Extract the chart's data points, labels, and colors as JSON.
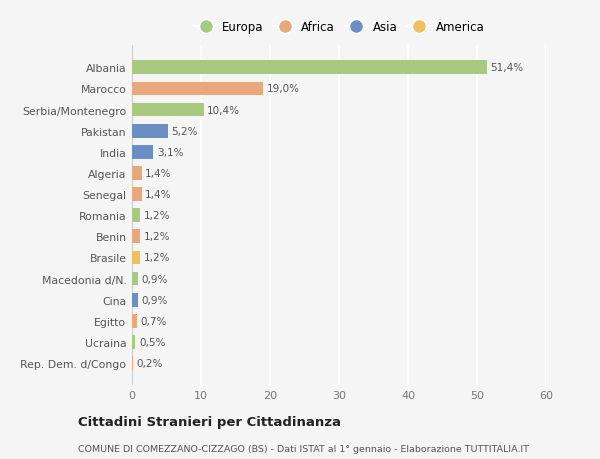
{
  "countries": [
    "Albania",
    "Marocco",
    "Serbia/Montenegro",
    "Pakistan",
    "India",
    "Algeria",
    "Senegal",
    "Romania",
    "Benin",
    "Brasile",
    "Macedonia d/N.",
    "Cina",
    "Egitto",
    "Ucraina",
    "Rep. Dem. d/Congo"
  ],
  "values": [
    51.4,
    19.0,
    10.4,
    5.2,
    3.1,
    1.4,
    1.4,
    1.2,
    1.2,
    1.2,
    0.9,
    0.9,
    0.7,
    0.5,
    0.2
  ],
  "labels": [
    "51,4%",
    "19,0%",
    "10,4%",
    "5,2%",
    "3,1%",
    "1,4%",
    "1,4%",
    "1,2%",
    "1,2%",
    "1,2%",
    "0,9%",
    "0,9%",
    "0,7%",
    "0,5%",
    "0,2%"
  ],
  "colors": [
    "#a8c97f",
    "#e8a87c",
    "#a8c97f",
    "#6b8fc4",
    "#6b8fc4",
    "#e8a87c",
    "#e8a87c",
    "#a8c97f",
    "#e8a87c",
    "#f0c060",
    "#a8c97f",
    "#6b8fc4",
    "#e8a87c",
    "#a8c97f",
    "#e8a87c"
  ],
  "legend_labels": [
    "Europa",
    "Africa",
    "Asia",
    "America"
  ],
  "legend_colors": [
    "#a8c97f",
    "#e8a87c",
    "#6b8fc4",
    "#f0c060"
  ],
  "title": "Cittadini Stranieri per Cittadinanza",
  "subtitle": "COMUNE DI COMEZZANO-CIZZAGO (BS) - Dati ISTAT al 1° gennaio - Elaborazione TUTTITALIA.IT",
  "xlim": [
    0,
    60
  ],
  "xticks": [
    0,
    10,
    20,
    30,
    40,
    50,
    60
  ],
  "bg_color": "#f5f5f5",
  "grid_color": "#ffffff"
}
